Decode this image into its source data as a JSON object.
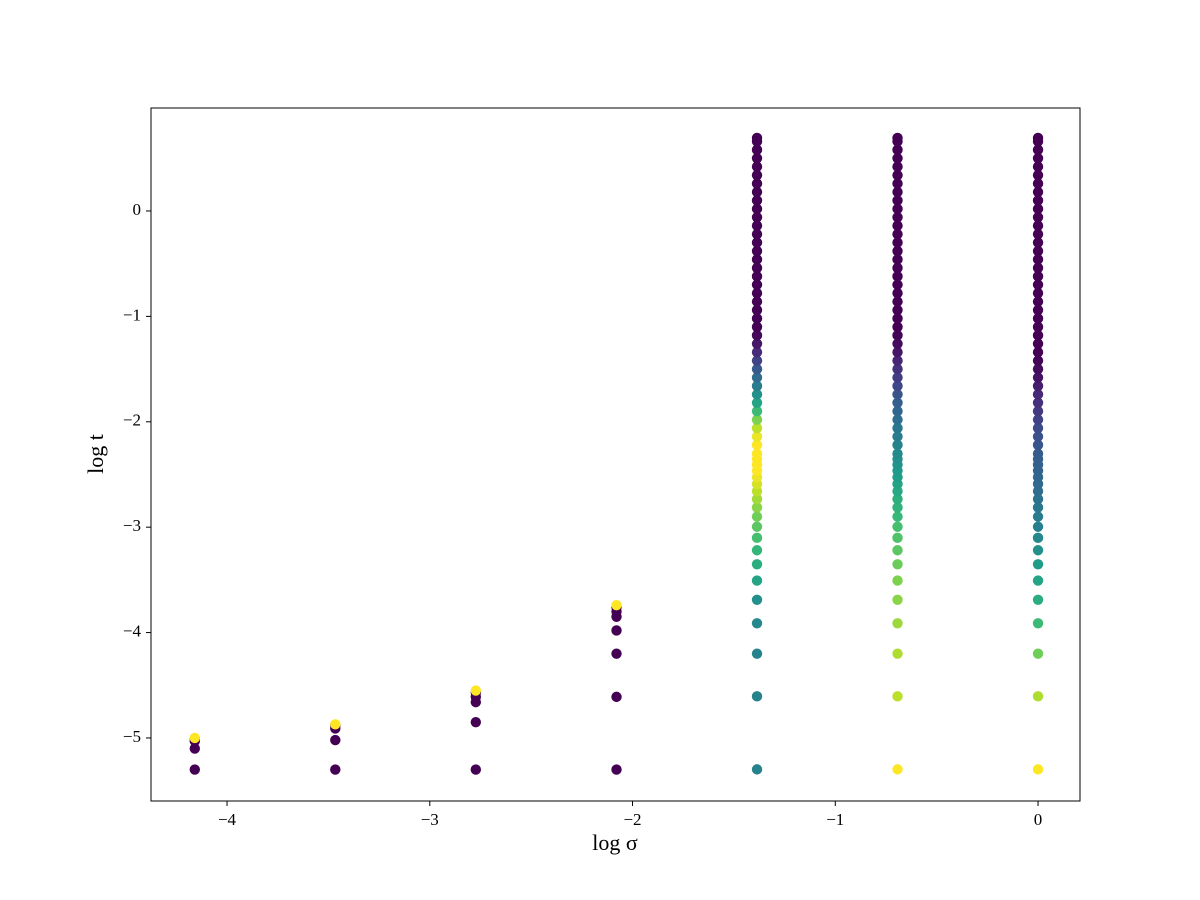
{
  "chart_data": {
    "type": "scatter",
    "xlabel": "log σ",
    "ylabel": "log t",
    "xlim": [
      -4.375,
      0.207
    ],
    "ylim": [
      -5.598,
      0.977
    ],
    "xticks": [
      {
        "value": -4,
        "label": "−4"
      },
      {
        "value": -3,
        "label": "−3"
      },
      {
        "value": -2,
        "label": "−2"
      },
      {
        "value": -1,
        "label": "−1"
      },
      0
    ],
    "yticks": [
      {
        "value": -5,
        "label": "−5"
      },
      {
        "value": -4,
        "label": "−4"
      },
      {
        "value": -3,
        "label": "−3"
      },
      {
        "value": -2,
        "label": "−2"
      },
      {
        "value": -1,
        "label": "−1"
      },
      0
    ],
    "grid": false,
    "colormap": [
      "#440154",
      "#482878",
      "#3e4989",
      "#31688e",
      "#26828e",
      "#1f9e89",
      "#35b779",
      "#6ece58",
      "#b5de2b",
      "#fde725"
    ],
    "clim": [
      0,
      1
    ],
    "series": [
      {
        "x": -4.159,
        "values": [
          -5.3,
          -5.1,
          -5.03,
          -5.01,
          -5.0
        ],
        "c": [
          0,
          0,
          0,
          0,
          1
        ]
      },
      {
        "x": -3.466,
        "values": [
          -5.3,
          -5.02,
          -4.91,
          -4.88,
          -4.87
        ],
        "c": [
          0,
          0,
          0,
          0,
          1
        ]
      },
      {
        "x": -2.773,
        "values": [
          -5.3,
          -4.85,
          -4.66,
          -4.61,
          -4.57,
          -4.55
        ],
        "c": [
          0,
          0,
          0,
          0,
          0,
          1
        ]
      },
      {
        "x": -2.079,
        "values": [
          -5.3,
          -4.61,
          -4.2,
          -3.98,
          -3.85,
          -3.8,
          -3.76,
          -3.74
        ],
        "c": [
          0,
          0,
          0,
          0,
          0,
          0,
          0,
          1
        ]
      },
      {
        "x": -1.386,
        "values": [
          -5.298,
          -4.605,
          -4.2,
          -3.912,
          -3.689,
          -3.507,
          -3.352,
          -3.219,
          -3.101,
          -2.996,
          -2.9,
          -2.813,
          -2.733,
          -2.659,
          -2.59,
          -2.526,
          -2.465,
          -2.408,
          -2.354,
          -2.303,
          -2.22,
          -2.14,
          -2.06,
          -1.98,
          -1.9,
          -1.82,
          -1.74,
          -1.66,
          -1.58,
          -1.5,
          -1.42,
          -1.34,
          -1.26,
          -1.18,
          -1.1,
          -1.02,
          -0.94,
          -0.86,
          -0.78,
          -0.7,
          -0.62,
          -0.54,
          -0.46,
          -0.38,
          -0.3,
          -0.22,
          -0.14,
          -0.06,
          0.02,
          0.1,
          0.18,
          0.26,
          0.34,
          0.42,
          0.5,
          0.58,
          0.66,
          0.693
        ],
        "c": [
          0.45,
          0.45,
          0.45,
          0.47,
          0.5,
          0.58,
          0.62,
          0.66,
          0.7,
          0.74,
          0.78,
          0.82,
          0.86,
          0.9,
          0.94,
          0.97,
          1,
          1,
          1,
          1,
          1,
          0.97,
          0.9,
          0.8,
          0.68,
          0.58,
          0.5,
          0.42,
          0.35,
          0.28,
          0.2,
          0.12,
          0.06,
          0.02,
          0,
          0,
          0,
          0,
          0,
          0,
          0,
          0,
          0,
          0,
          0,
          0,
          0,
          0,
          0,
          0,
          0,
          0,
          0,
          0,
          0,
          0,
          0,
          0
        ]
      },
      {
        "x": -0.693,
        "values": [
          -5.298,
          -4.605,
          -4.2,
          -3.912,
          -3.689,
          -3.507,
          -3.352,
          -3.219,
          -3.101,
          -2.996,
          -2.9,
          -2.813,
          -2.733,
          -2.659,
          -2.59,
          -2.526,
          -2.465,
          -2.408,
          -2.354,
          -2.303,
          -2.22,
          -2.14,
          -2.06,
          -1.98,
          -1.9,
          -1.82,
          -1.74,
          -1.66,
          -1.58,
          -1.5,
          -1.42,
          -1.34,
          -1.26,
          -1.18,
          -1.1,
          -1.02,
          -0.94,
          -0.86,
          -0.78,
          -0.7,
          -0.62,
          -0.54,
          -0.46,
          -0.38,
          -0.3,
          -0.22,
          -0.14,
          -0.06,
          0.02,
          0.1,
          0.18,
          0.26,
          0.34,
          0.42,
          0.5,
          0.58,
          0.66,
          0.693
        ],
        "c": [
          1,
          0.9,
          0.88,
          0.85,
          0.82,
          0.8,
          0.77,
          0.74,
          0.72,
          0.7,
          0.67,
          0.65,
          0.63,
          0.6,
          0.58,
          0.56,
          0.54,
          0.52,
          0.5,
          0.48,
          0.45,
          0.42,
          0.4,
          0.36,
          0.33,
          0.3,
          0.26,
          0.22,
          0.18,
          0.14,
          0.1,
          0.06,
          0.03,
          0.01,
          0,
          0,
          0,
          0,
          0,
          0,
          0,
          0,
          0,
          0,
          0,
          0,
          0,
          0,
          0,
          0,
          0,
          0,
          0,
          0,
          0,
          0,
          0,
          0
        ]
      },
      {
        "x": 0,
        "values": [
          -5.298,
          -4.605,
          -4.2,
          -3.912,
          -3.689,
          -3.507,
          -3.352,
          -3.219,
          -3.101,
          -2.996,
          -2.9,
          -2.813,
          -2.733,
          -2.659,
          -2.59,
          -2.526,
          -2.465,
          -2.408,
          -2.354,
          -2.303,
          -2.22,
          -2.14,
          -2.06,
          -1.98,
          -1.9,
          -1.82,
          -1.74,
          -1.66,
          -1.58,
          -1.5,
          -1.42,
          -1.34,
          -1.26,
          -1.18,
          -1.1,
          -1.02,
          -0.94,
          -0.86,
          -0.78,
          -0.7,
          -0.62,
          -0.54,
          -0.46,
          -0.38,
          -0.3,
          -0.22,
          -0.14,
          -0.06,
          0.02,
          0.1,
          0.18,
          0.26,
          0.34,
          0.42,
          0.5,
          0.58,
          0.66,
          0.693
        ],
        "c": [
          1,
          0.88,
          0.78,
          0.68,
          0.62,
          0.58,
          0.55,
          0.5,
          0.47,
          0.44,
          0.42,
          0.4,
          0.38,
          0.36,
          0.34,
          0.33,
          0.32,
          0.31,
          0.3,
          0.29,
          0.27,
          0.25,
          0.23,
          0.2,
          0.17,
          0.14,
          0.11,
          0.08,
          0.05,
          0.03,
          0.01,
          0,
          0,
          0,
          0,
          0,
          0,
          0,
          0,
          0,
          0,
          0,
          0,
          0,
          0,
          0,
          0,
          0,
          0,
          0,
          0,
          0,
          0,
          0,
          0,
          0,
          0,
          0
        ]
      }
    ]
  }
}
